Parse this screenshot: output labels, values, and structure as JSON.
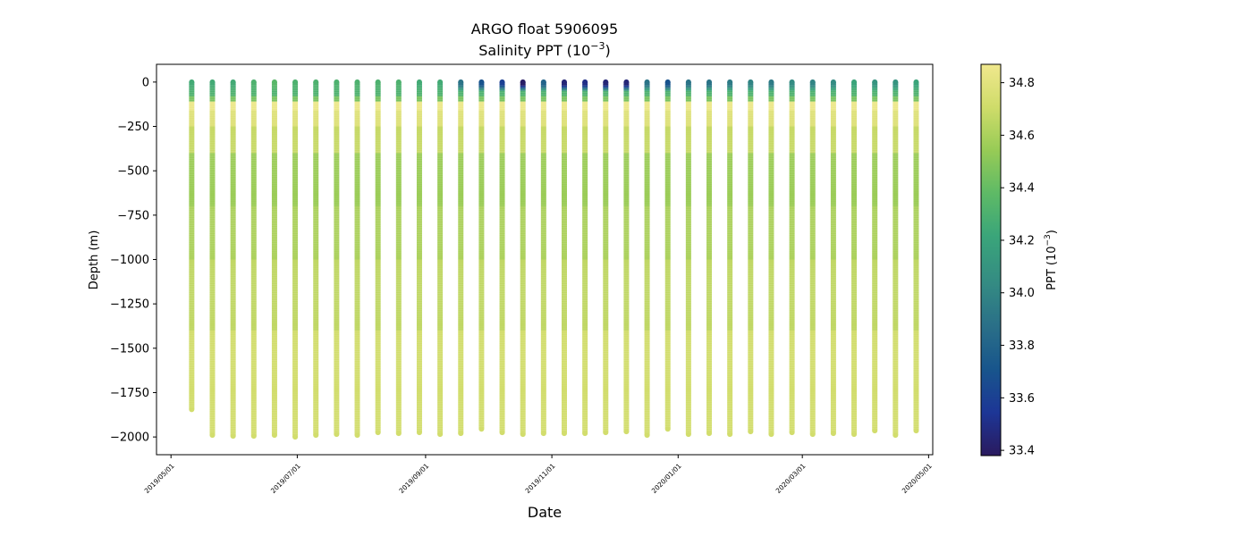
{
  "chart_data": {
    "type": "scatter",
    "title": "ARGO float 5906095",
    "subtitle_prefix": "Salinity PPT (10",
    "subtitle_exp": "−3",
    "subtitle_suffix": ")",
    "xlabel": "Date",
    "ylabel": "Depth (m)",
    "colorbar_label_prefix": "PPT (10",
    "colorbar_label_exp": "−3",
    "colorbar_label_suffix": ")",
    "xlim": [
      "2019-04-24",
      "2020-05-03"
    ],
    "ylim": [
      -2100,
      100
    ],
    "x_ticks": [
      "2019/05/01",
      "2019/07/01",
      "2019/09/01",
      "2019/11/01",
      "2020/01/01",
      "2020/03/01",
      "2020/05/01"
    ],
    "y_ticks": [
      0,
      -250,
      -500,
      -750,
      -1000,
      -1250,
      -1500,
      -1750,
      -2000
    ],
    "y_tick_labels": [
      "0",
      "−250",
      "−500",
      "−750",
      "−1000",
      "−1250",
      "−1500",
      "−1750",
      "−2000"
    ],
    "colorbar_range": [
      33.38,
      34.87
    ],
    "colorbar_ticks": [
      33.4,
      33.6,
      33.8,
      34.0,
      34.2,
      34.4,
      34.6,
      34.8
    ],
    "colorbar_tick_labels": [
      "33.4",
      "33.6",
      "33.8",
      "34.0",
      "34.2",
      "34.4",
      "34.6",
      "34.8"
    ],
    "colormap": "haline",
    "colormap_stops": [
      "#2a1a5e",
      "#1d3696",
      "#18558c",
      "#2a6f88",
      "#348b83",
      "#3aa57a",
      "#5eba66",
      "#97cb56",
      "#cfdc6a",
      "#f0e88d"
    ],
    "grid": false,
    "legend": "none",
    "profiles": [
      {
        "date": "2019-05-11",
        "max_depth": 1845,
        "surface_salinity": 34.25
      },
      {
        "date": "2019-05-21",
        "max_depth": 1990,
        "surface_salinity": 34.25
      },
      {
        "date": "2019-05-31",
        "max_depth": 1995,
        "surface_salinity": 34.25
      },
      {
        "date": "2019-06-10",
        "max_depth": 1995,
        "surface_salinity": 34.3
      },
      {
        "date": "2019-06-20",
        "max_depth": 1990,
        "surface_salinity": 34.35
      },
      {
        "date": "2019-06-30",
        "max_depth": 2000,
        "surface_salinity": 34.3
      },
      {
        "date": "2019-07-10",
        "max_depth": 1990,
        "surface_salinity": 34.3
      },
      {
        "date": "2019-07-20",
        "max_depth": 1985,
        "surface_salinity": 34.3
      },
      {
        "date": "2019-07-30",
        "max_depth": 1990,
        "surface_salinity": 34.3
      },
      {
        "date": "2019-08-09",
        "max_depth": 1975,
        "surface_salinity": 34.3
      },
      {
        "date": "2019-08-19",
        "max_depth": 1980,
        "surface_salinity": 34.3
      },
      {
        "date": "2019-08-29",
        "max_depth": 1975,
        "surface_salinity": 34.25
      },
      {
        "date": "2019-09-08",
        "max_depth": 1985,
        "surface_salinity": 34.25
      },
      {
        "date": "2019-09-18",
        "max_depth": 1980,
        "surface_salinity": 33.9
      },
      {
        "date": "2019-09-28",
        "max_depth": 1955,
        "surface_salinity": 33.7
      },
      {
        "date": "2019-10-08",
        "max_depth": 1975,
        "surface_salinity": 33.6
      },
      {
        "date": "2019-10-18",
        "max_depth": 1985,
        "surface_salinity": 33.4
      },
      {
        "date": "2019-10-28",
        "max_depth": 1980,
        "surface_salinity": 33.8
      },
      {
        "date": "2019-11-07",
        "max_depth": 1980,
        "surface_salinity": 33.45
      },
      {
        "date": "2019-11-17",
        "max_depth": 1980,
        "surface_salinity": 33.5
      },
      {
        "date": "2019-11-27",
        "max_depth": 1975,
        "surface_salinity": 33.45
      },
      {
        "date": "2019-12-07",
        "max_depth": 1970,
        "surface_salinity": 33.45
      },
      {
        "date": "2019-12-17",
        "max_depth": 1990,
        "surface_salinity": 33.9
      },
      {
        "date": "2019-12-27",
        "max_depth": 1955,
        "surface_salinity": 33.7
      },
      {
        "date": "2020-01-06",
        "max_depth": 1985,
        "surface_salinity": 33.9
      },
      {
        "date": "2020-01-16",
        "max_depth": 1980,
        "surface_salinity": 33.9
      },
      {
        "date": "2020-01-26",
        "max_depth": 1985,
        "surface_salinity": 33.95
      },
      {
        "date": "2020-02-05",
        "max_depth": 1970,
        "surface_salinity": 34.0
      },
      {
        "date": "2020-02-15",
        "max_depth": 1985,
        "surface_salinity": 33.95
      },
      {
        "date": "2020-02-25",
        "max_depth": 1975,
        "surface_salinity": 34.05
      },
      {
        "date": "2020-03-06",
        "max_depth": 1985,
        "surface_salinity": 34.0
      },
      {
        "date": "2020-03-16",
        "max_depth": 1980,
        "surface_salinity": 34.05
      },
      {
        "date": "2020-03-26",
        "max_depth": 1985,
        "surface_salinity": 34.2
      },
      {
        "date": "2020-04-05",
        "max_depth": 1965,
        "surface_salinity": 34.1
      },
      {
        "date": "2020-04-15",
        "max_depth": 1990,
        "surface_salinity": 34.1
      },
      {
        "date": "2020-04-25",
        "max_depth": 1965,
        "surface_salinity": 34.2
      }
    ]
  }
}
